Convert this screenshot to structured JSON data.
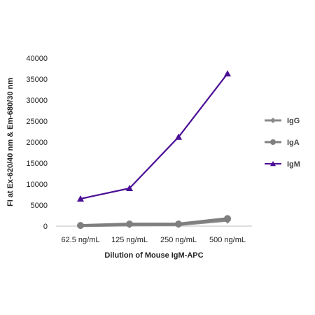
{
  "chart_data": {
    "type": "line",
    "categories": [
      "62.5 ng/mL",
      "125 ng/mL",
      "250 ng/mL",
      "500 ng/mL"
    ],
    "series": [
      {
        "name": "IgG",
        "values": [
          100,
          300,
          350,
          1400
        ],
        "color": "#8a8a8a",
        "marker": "diamond"
      },
      {
        "name": "IgA",
        "values": [
          150,
          500,
          500,
          1800
        ],
        "color": "#7f7f7f",
        "marker": "circle"
      },
      {
        "name": "IgM",
        "values": [
          6500,
          9000,
          21200,
          36300
        ],
        "color": "#4b0f96",
        "marker": "triangle"
      }
    ],
    "xlabel": "Dilution of Mouse IgM-APC",
    "ylabel": "FI at Ex-620/40 nm & Em-680/30 nm",
    "ylim": [
      0,
      40000
    ],
    "yticks": [
      "0",
      "5000",
      "10000",
      "15000",
      "20000",
      "25000",
      "30000",
      "35000",
      "40000"
    ],
    "grid": false,
    "legend_position": "right"
  }
}
